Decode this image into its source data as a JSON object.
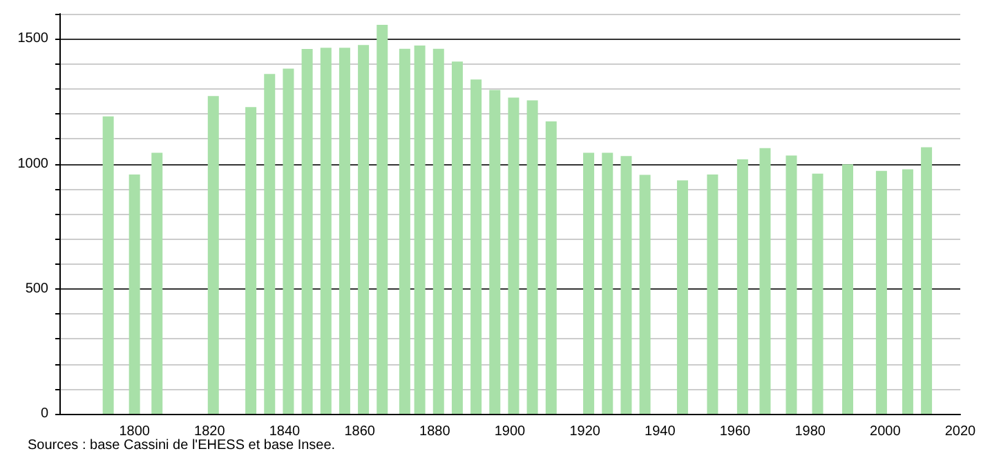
{
  "chart_data": {
    "type": "bar",
    "x": [
      1793,
      1800,
      1806,
      1821,
      1831,
      1836,
      1841,
      1846,
      1851,
      1856,
      1861,
      1866,
      1872,
      1876,
      1881,
      1886,
      1891,
      1896,
      1901,
      1906,
      1911,
      1921,
      1926,
      1931,
      1936,
      1946,
      1954,
      1962,
      1968,
      1975,
      1982,
      1990,
      1999,
      2006,
      2011
    ],
    "values": [
      1190,
      957,
      1044,
      1271,
      1227,
      1359,
      1381,
      1459,
      1464,
      1464,
      1475,
      1556,
      1460,
      1473,
      1460,
      1409,
      1337,
      1295,
      1265,
      1254,
      1170,
      1044,
      1044,
      1031,
      956,
      934,
      957,
      1018,
      1063,
      1033,
      961,
      998,
      972,
      978,
      1066
    ],
    "color": "#a8e0a8",
    "xlim": [
      1780,
      2020
    ],
    "xticks": [
      1800,
      1820,
      1840,
      1860,
      1880,
      1900,
      1920,
      1940,
      1960,
      1980,
      2000,
      2020
    ],
    "ylim": [
      0,
      1600
    ],
    "yticks": [
      0,
      {
        "value": 100,
        "label": null
      },
      {
        "value": 200,
        "label": null
      },
      {
        "value": 300,
        "label": null
      },
      {
        "value": 400,
        "label": null
      },
      500,
      {
        "value": 600,
        "label": null
      },
      {
        "value": 700,
        "label": null
      },
      {
        "value": 800,
        "label": null
      },
      {
        "value": 900,
        "label": null
      },
      1000,
      {
        "value": 1100,
        "label": null
      },
      {
        "value": 1200,
        "label": null
      },
      {
        "value": 1300,
        "label": null
      },
      {
        "value": 1400,
        "label": null
      },
      1500,
      {
        "value": 1600,
        "label": null
      }
    ],
    "grid": "y",
    "annotations": [
      "Sources : base Cassini de l'EHESS et base Insee."
    ]
  }
}
